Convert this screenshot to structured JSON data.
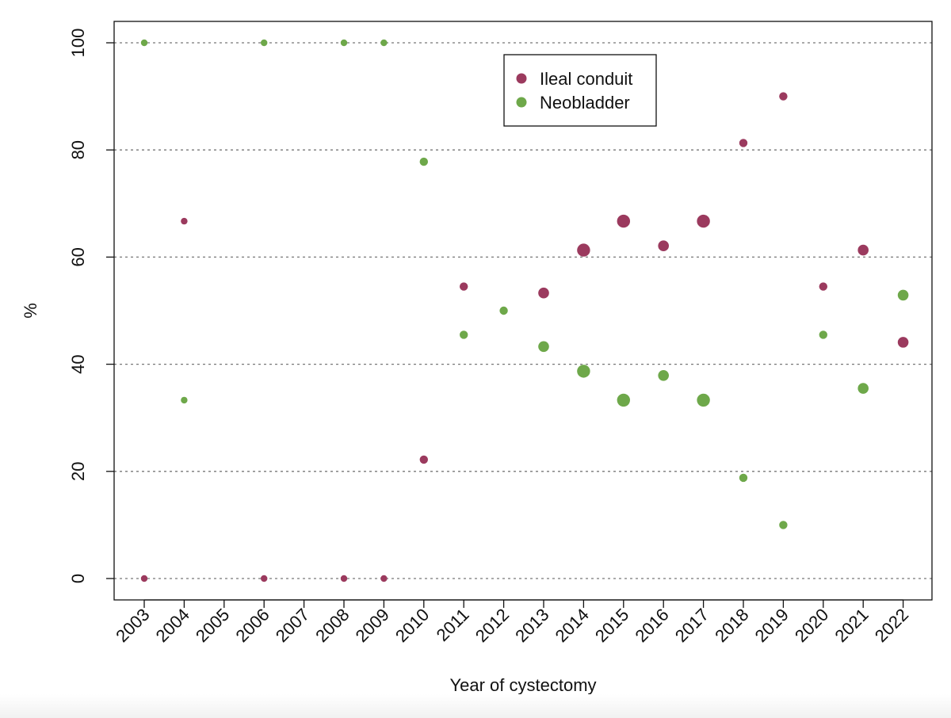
{
  "chart_data": {
    "type": "scatter",
    "title": "",
    "xlabel": "Year of cystectomy",
    "ylabel": "%",
    "ylim": [
      0,
      100
    ],
    "yticks": [
      0,
      20,
      40,
      60,
      80,
      100
    ],
    "categories": [
      "2003",
      "2004",
      "2005",
      "2006",
      "2007",
      "2008",
      "2009",
      "2010",
      "2011",
      "2012",
      "2013",
      "2014",
      "2015",
      "2016",
      "2017",
      "2018",
      "2019",
      "2020",
      "2021",
      "2022"
    ],
    "grid": "horizontal dotted",
    "legend_position": "top-center",
    "point_size_note": "marker size varies by year",
    "series": [
      {
        "name": "Ileal conduit",
        "color": "#9b3a5e",
        "points": [
          {
            "x": "2003",
            "y": 0,
            "size": 1
          },
          {
            "x": "2004",
            "y": 66.7,
            "size": 1
          },
          {
            "x": "2006",
            "y": 0,
            "size": 1
          },
          {
            "x": "2008",
            "y": 0,
            "size": 1
          },
          {
            "x": "2009",
            "y": 0,
            "size": 1
          },
          {
            "x": "2010",
            "y": 22.2,
            "size": 2
          },
          {
            "x": "2011",
            "y": 54.5,
            "size": 2
          },
          {
            "x": "2013",
            "y": 53.3,
            "size": 3
          },
          {
            "x": "2014",
            "y": 61.3,
            "size": 4
          },
          {
            "x": "2015",
            "y": 66.7,
            "size": 4
          },
          {
            "x": "2016",
            "y": 62.1,
            "size": 3
          },
          {
            "x": "2017",
            "y": 66.7,
            "size": 4
          },
          {
            "x": "2018",
            "y": 81.3,
            "size": 2
          },
          {
            "x": "2019",
            "y": 90.0,
            "size": 2
          },
          {
            "x": "2020",
            "y": 54.5,
            "size": 2
          },
          {
            "x": "2021",
            "y": 61.3,
            "size": 3
          },
          {
            "x": "2022",
            "y": 44.1,
            "size": 3
          }
        ]
      },
      {
        "name": "Neobladder",
        "color": "#6ea84a",
        "points": [
          {
            "x": "2003",
            "y": 100,
            "size": 1
          },
          {
            "x": "2004",
            "y": 33.3,
            "size": 1
          },
          {
            "x": "2006",
            "y": 100,
            "size": 1
          },
          {
            "x": "2008",
            "y": 100,
            "size": 1
          },
          {
            "x": "2009",
            "y": 100,
            "size": 1
          },
          {
            "x": "2010",
            "y": 77.8,
            "size": 2
          },
          {
            "x": "2011",
            "y": 45.5,
            "size": 2
          },
          {
            "x": "2012",
            "y": 50.0,
            "size": 2
          },
          {
            "x": "2013",
            "y": 43.3,
            "size": 3
          },
          {
            "x": "2014",
            "y": 38.7,
            "size": 4
          },
          {
            "x": "2015",
            "y": 33.3,
            "size": 4
          },
          {
            "x": "2016",
            "y": 37.9,
            "size": 3
          },
          {
            "x": "2017",
            "y": 33.3,
            "size": 4
          },
          {
            "x": "2018",
            "y": 18.8,
            "size": 2
          },
          {
            "x": "2019",
            "y": 10.0,
            "size": 2
          },
          {
            "x": "2020",
            "y": 45.5,
            "size": 2
          },
          {
            "x": "2021",
            "y": 35.5,
            "size": 3
          },
          {
            "x": "2022",
            "y": 52.9,
            "size": 3
          }
        ]
      }
    ]
  }
}
